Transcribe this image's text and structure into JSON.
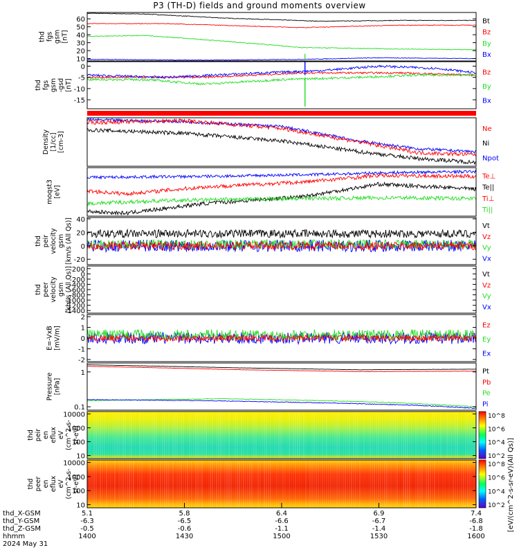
{
  "title": "P3 (TH-D) fields and ground moments overview",
  "colors": {
    "black": "#000000",
    "red": "#ff0000",
    "green": "#22dd22",
    "blue": "#0000ff"
  },
  "panels": [
    {
      "id": "fgs-gsm-mag",
      "ylabel": [
        "thd",
        "fgs",
        "gsm",
        "[nT]"
      ],
      "yrange": [
        7,
        68
      ],
      "ticks": [
        10,
        20,
        30,
        40,
        50,
        60
      ],
      "legend": [
        {
          "label": "Bt",
          "color": "black"
        },
        {
          "label": "Bz",
          "color": "red"
        },
        {
          "label": "By",
          "color": "green"
        },
        {
          "label": "Bx",
          "color": "blue"
        }
      ],
      "series": [
        {
          "color": "black",
          "points": [
            [
              0,
              67
            ],
            [
              0.15,
              66
            ],
            [
              0.35,
              61
            ],
            [
              0.6,
              57
            ],
            [
              0.8,
              58
            ],
            [
              1,
              58
            ]
          ],
          "noise": 0.4
        },
        {
          "color": "red",
          "points": [
            [
              0,
              54
            ],
            [
              0.2,
              54
            ],
            [
              0.55,
              49
            ],
            [
              0.8,
              52
            ],
            [
              1,
              52
            ]
          ],
          "noise": 0.4
        },
        {
          "color": "green",
          "points": [
            [
              0,
              38
            ],
            [
              0.15,
              39
            ],
            [
              0.35,
              32
            ],
            [
              0.55,
              24
            ],
            [
              0.8,
              22
            ],
            [
              1,
              21
            ]
          ],
          "noise": 0.5
        },
        {
          "color": "blue",
          "points": [
            [
              0,
              9
            ],
            [
              0.3,
              8
            ],
            [
              0.55,
              9
            ],
            [
              0.75,
              11
            ],
            [
              1,
              10
            ]
          ],
          "noise": 0.4
        }
      ]
    },
    {
      "id": "fgs-gse-comp",
      "ylabel": [
        "thd",
        "fgs",
        "gsm",
        "-gsd",
        "[nT]"
      ],
      "yrange": [
        -19,
        2
      ],
      "ticks": [
        -15,
        -10,
        -5,
        0
      ],
      "legend": [
        {
          "label": "Bz",
          "color": "red"
        },
        {
          "label": "By",
          "color": "green"
        },
        {
          "label": "Bx",
          "color": "blue"
        }
      ],
      "series": [
        {
          "color": "red",
          "points": [
            [
              0,
              -5
            ],
            [
              0.3,
              -5
            ],
            [
              0.55,
              -3
            ],
            [
              0.8,
              -3
            ],
            [
              1,
              -4
            ]
          ],
          "noise": 0.4
        },
        {
          "color": "green",
          "points": [
            [
              0,
              -6
            ],
            [
              0.15,
              -6
            ],
            [
              0.3,
              -8
            ],
            [
              0.5,
              -6
            ],
            [
              0.7,
              -5
            ],
            [
              0.85,
              -4
            ],
            [
              1,
              -4
            ]
          ],
          "noise": 0.5
        },
        {
          "color": "blue",
          "points": [
            [
              0,
              -4
            ],
            [
              0.2,
              -5
            ],
            [
              0.45,
              -3
            ],
            [
              0.6,
              -2
            ],
            [
              0.75,
              0
            ],
            [
              0.9,
              -1
            ],
            [
              1,
              -3
            ]
          ],
          "noise": 0.5
        }
      ]
    },
    {
      "id": "mode-bar",
      "ylabel": [],
      "legend": []
    },
    {
      "id": "density",
      "ylabel": [
        "Density",
        "[1/cc]",
        "[cm-3]"
      ],
      "yrange": [
        0,
        10
      ],
      "ticks": [],
      "legend": [
        {
          "label": "Ne",
          "color": "red"
        },
        {
          "label": "Ni",
          "color": "black"
        },
        {
          "label": "Npot",
          "color": "blue"
        }
      ],
      "series": [
        {
          "color": "blue",
          "points": [
            [
              0,
              9.6
            ],
            [
              0.25,
              9.2
            ],
            [
              0.5,
              8.2
            ],
            [
              0.7,
              5.2
            ],
            [
              0.85,
              3.6
            ],
            [
              1,
              3.0
            ]
          ],
          "noise": 0.3
        },
        {
          "color": "red",
          "points": [
            [
              0,
              9.0
            ],
            [
              0.25,
              9.4
            ],
            [
              0.5,
              7.8
            ],
            [
              0.7,
              5.0
            ],
            [
              0.85,
              2.8
            ],
            [
              1,
              2.4
            ]
          ],
          "noise": 0.4
        },
        {
          "color": "black",
          "points": [
            [
              0,
              7.5
            ],
            [
              0.25,
              6.8
            ],
            [
              0.5,
              5.2
            ],
            [
              0.7,
              3.0
            ],
            [
              0.85,
              1.6
            ],
            [
              1,
              0.8
            ]
          ],
          "noise": 0.4
        }
      ]
    },
    {
      "id": "temperature",
      "ylabel": [
        "moqst3",
        "[eV]"
      ],
      "yrange": [
        0,
        10
      ],
      "ticks": [],
      "legend": [
        {
          "label": "Te⊥",
          "color": "red"
        },
        {
          "label": "Te||",
          "color": "black"
        },
        {
          "label": "Ti⊥",
          "color": "red"
        },
        {
          "label": "Ti||",
          "color": "green"
        }
      ],
      "series": [
        {
          "color": "blue",
          "points": [
            [
              0,
              8.0
            ],
            [
              0.3,
              8.2
            ],
            [
              0.6,
              8.6
            ],
            [
              0.8,
              9.0
            ],
            [
              1,
              9.2
            ]
          ],
          "noise": 0.3
        },
        {
          "color": "red",
          "points": [
            [
              0,
              5.2
            ],
            [
              0.1,
              4.6
            ],
            [
              0.3,
              6.0
            ],
            [
              0.55,
              7.0
            ],
            [
              0.75,
              8.4
            ],
            [
              1,
              8.2
            ]
          ],
          "noise": 0.4
        },
        {
          "color": "black",
          "points": [
            [
              0,
              1.0
            ],
            [
              0.1,
              0.6
            ],
            [
              0.3,
              2.6
            ],
            [
              0.55,
              4.0
            ],
            [
              0.75,
              6.6
            ],
            [
              1,
              5.6
            ]
          ],
          "noise": 0.4
        },
        {
          "color": "green",
          "points": [
            [
              0,
              2.6
            ],
            [
              0.2,
              3.2
            ],
            [
              0.5,
              3.6
            ],
            [
              0.8,
              3.8
            ],
            [
              1,
              3.6
            ]
          ],
          "noise": 0.4
        }
      ]
    },
    {
      "id": "peir-velocity",
      "ylabel": [
        "thd",
        "peir",
        "velocity",
        "gsm",
        "[km/s (All Qs)]"
      ],
      "yrange": [
        -28,
        42
      ],
      "ticks": [
        -20,
        0,
        20,
        40
      ],
      "legend": [
        {
          "label": "Vt",
          "color": "black"
        },
        {
          "label": "Vz",
          "color": "red"
        },
        {
          "label": "Vy",
          "color": "green"
        },
        {
          "label": "Vx",
          "color": "blue"
        }
      ],
      "series": [
        {
          "color": "blue",
          "points": [
            [
              0,
              0
            ],
            [
              1,
              0
            ]
          ],
          "noise": 9
        },
        {
          "color": "green",
          "points": [
            [
              0,
              2
            ],
            [
              1,
              2
            ]
          ],
          "noise": 7
        },
        {
          "color": "red",
          "points": [
            [
              0,
              0
            ],
            [
              1,
              0
            ]
          ],
          "noise": 6
        },
        {
          "color": "black",
          "points": [
            [
              0,
              18
            ],
            [
              1,
              18
            ]
          ],
          "noise": 6
        }
      ]
    },
    {
      "id": "peer-velocity",
      "ylabel": [
        "thd",
        "peer",
        "velocity",
        "gsm",
        "[km/s (All Qs)]"
      ],
      "yrange": [
        -1500,
        300
      ],
      "ticks": [
        -1400,
        -1200,
        -1000,
        -800,
        -600,
        -400,
        -200,
        0,
        200
      ],
      "legend": [
        {
          "label": "Vt",
          "color": "black"
        },
        {
          "label": "Vz",
          "color": "red"
        },
        {
          "label": "Vy",
          "color": "green"
        },
        {
          "label": "Vx",
          "color": "blue"
        }
      ],
      "series": []
    },
    {
      "id": "efield",
      "ylabel": [
        "E=-VxB",
        "[mV/m]"
      ],
      "yrange": [
        -2.2,
        2.2
      ],
      "ticks": [
        -2,
        -1,
        0,
        1,
        2
      ],
      "legend": [
        {
          "label": "Ez",
          "color": "red"
        },
        {
          "label": "Ey",
          "color": "green"
        },
        {
          "label": "Ex",
          "color": "blue"
        }
      ],
      "series": [
        {
          "color": "blue",
          "points": [
            [
              0,
              0
            ],
            [
              1,
              0
            ]
          ],
          "noise": 0.55
        },
        {
          "color": "green",
          "points": [
            [
              0,
              0.3
            ],
            [
              1,
              0.3
            ]
          ],
          "noise": 0.5
        },
        {
          "color": "red",
          "points": [
            [
              0,
              0
            ],
            [
              1,
              0
            ]
          ],
          "noise": 0.3
        }
      ]
    },
    {
      "id": "pressure",
      "ylabel": [
        "Pressure",
        "[nPa]"
      ],
      "yrange": [
        0.08,
        1.8
      ],
      "log": true,
      "ticks": [
        0.1,
        1.0
      ],
      "legend": [
        {
          "label": "Pt",
          "color": "black"
        },
        {
          "label": "Pb",
          "color": "red"
        },
        {
          "label": "Pe",
          "color": "green"
        },
        {
          "label": "Pi",
          "color": "blue"
        }
      ],
      "series": [
        {
          "color": "black",
          "points": [
            [
              0,
              1.6
            ],
            [
              0.4,
              1.3
            ],
            [
              0.7,
              1.15
            ],
            [
              1,
              1.2
            ]
          ],
          "noise": 0.01
        },
        {
          "color": "red",
          "points": [
            [
              0,
              1.45
            ],
            [
              0.4,
              1.15
            ],
            [
              0.7,
              1.02
            ],
            [
              1,
              1.05
            ]
          ],
          "noise": 0.01
        },
        {
          "color": "green",
          "points": [
            [
              0,
              0.15
            ],
            [
              0.35,
              0.17
            ],
            [
              0.6,
              0.15
            ],
            [
              0.8,
              0.13
            ],
            [
              1,
              0.1
            ]
          ],
          "noise": 0.003
        },
        {
          "color": "blue",
          "points": [
            [
              0,
              0.16
            ],
            [
              0.3,
              0.15
            ],
            [
              0.6,
              0.13
            ],
            [
              0.85,
              0.11
            ],
            [
              1,
              0.09
            ]
          ],
          "noise": 0.003
        }
      ]
    },
    {
      "id": "peir-eflux",
      "ylabel": [
        "thd",
        "peir",
        "en",
        "eflux",
        "eV",
        "(cm^2-s-",
        "sr-eV)"
      ],
      "yrange": [
        6,
        15000
      ],
      "log": true,
      "ticks": [
        10,
        100,
        1000,
        10000
      ],
      "legend": [],
      "colorbar": {
        "ticks": [
          "10^8",
          "10^6",
          "10^4",
          "10^2"
        ],
        "label": "[eV/(cm^2-s-sr-eV) (All Qs)]"
      }
    },
    {
      "id": "peer-eflux",
      "ylabel": [
        "thd",
        "peer",
        "en",
        "eflux",
        "eV",
        "(cm^2-s-",
        "sr-eV)"
      ],
      "yrange": [
        6,
        15000
      ],
      "log": true,
      "ticks": [
        10,
        100,
        1000,
        10000
      ],
      "legend": [],
      "colorbar": {
        "ticks": [
          "10^8",
          "10^6",
          "10^4",
          "10^2"
        ],
        "label": ""
      }
    }
  ],
  "colorbar_label": "[eV/(cm^2-s-sr-eV)(All Qs)]",
  "xaxis": {
    "row_labels": [
      "thd_X-GSM",
      "thd_Y-GSM",
      "thd_Z-GSM",
      "hhmm",
      "2024 May 31"
    ],
    "columns": [
      [
        "5.1",
        "-6.3",
        "-0.5",
        "1400"
      ],
      [
        "5.8",
        "-6.5",
        "-0.6",
        "1430"
      ],
      [
        "6.4",
        "-6.6",
        "-1.1",
        "1500"
      ],
      [
        "6.9",
        "-6.7",
        "-1.4",
        "1530"
      ],
      [
        "7.4",
        "-6.8",
        "-1.8",
        "1600"
      ]
    ]
  }
}
